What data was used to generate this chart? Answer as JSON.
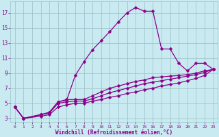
{
  "bg_color": "#c8eaf0",
  "grid_color": "#9bbfc8",
  "line_color": "#8b008b",
  "marker": "D",
  "markersize": 2.5,
  "linewidth": 0.9,
  "xlabel": "Windchill (Refroidissement éolien,°C)",
  "xlabel_color": "#8b008b",
  "xlim": [
    -0.5,
    23.5
  ],
  "ylim": [
    2.5,
    18.5
  ],
  "xticks": [
    0,
    1,
    2,
    3,
    4,
    5,
    6,
    7,
    8,
    9,
    10,
    11,
    12,
    13,
    14,
    15,
    16,
    17,
    18,
    19,
    20,
    21,
    22,
    23
  ],
  "yticks": [
    3,
    5,
    7,
    9,
    11,
    13,
    15,
    17
  ],
  "tick_color": "#8b008b",
  "curves": [
    {
      "x": [
        0,
        1,
        3,
        4,
        5,
        6,
        7,
        8,
        9,
        10,
        11,
        12,
        13,
        14,
        15,
        16,
        17,
        18,
        19,
        20,
        21,
        22,
        23
      ],
      "y": [
        4.5,
        3.0,
        3.5,
        3.8,
        5.2,
        5.4,
        8.7,
        10.5,
        12.1,
        13.3,
        14.5,
        15.8,
        17.0,
        17.7,
        17.2,
        17.2,
        12.2,
        12.2,
        10.3,
        9.3,
        10.3,
        10.3,
        9.5
      ]
    },
    {
      "x": [
        0,
        1,
        3,
        4,
        5,
        6,
        7,
        8,
        9,
        10,
        11,
        12,
        13,
        14,
        15,
        16,
        17,
        18,
        19,
        20,
        21,
        22,
        23
      ],
      "y": [
        4.5,
        3.0,
        3.5,
        3.8,
        5.2,
        5.5,
        5.5,
        5.5,
        6.0,
        6.5,
        7.0,
        7.3,
        7.6,
        7.9,
        8.1,
        8.4,
        8.5,
        8.6,
        8.7,
        8.8,
        9.0,
        9.3,
        9.5
      ]
    },
    {
      "x": [
        0,
        1,
        3,
        4,
        5,
        6,
        7,
        8,
        9,
        10,
        11,
        12,
        13,
        14,
        15,
        16,
        17,
        18,
        19,
        20,
        21,
        22,
        23
      ],
      "y": [
        4.5,
        3.0,
        3.5,
        3.7,
        5.0,
        5.2,
        5.3,
        5.3,
        5.6,
        6.0,
        6.4,
        6.7,
        7.0,
        7.3,
        7.6,
        7.8,
        8.0,
        8.2,
        8.4,
        8.6,
        8.8,
        9.1,
        9.5
      ]
    },
    {
      "x": [
        0,
        1,
        3,
        4,
        5,
        6,
        7,
        8,
        9,
        10,
        11,
        12,
        13,
        14,
        15,
        16,
        17,
        18,
        19,
        20,
        21,
        22,
        23
      ],
      "y": [
        4.5,
        3.0,
        3.3,
        3.5,
        4.5,
        4.8,
        5.0,
        5.0,
        5.3,
        5.5,
        5.8,
        6.0,
        6.3,
        6.5,
        6.8,
        7.0,
        7.3,
        7.5,
        7.7,
        8.0,
        8.3,
        8.7,
        9.5
      ]
    }
  ]
}
